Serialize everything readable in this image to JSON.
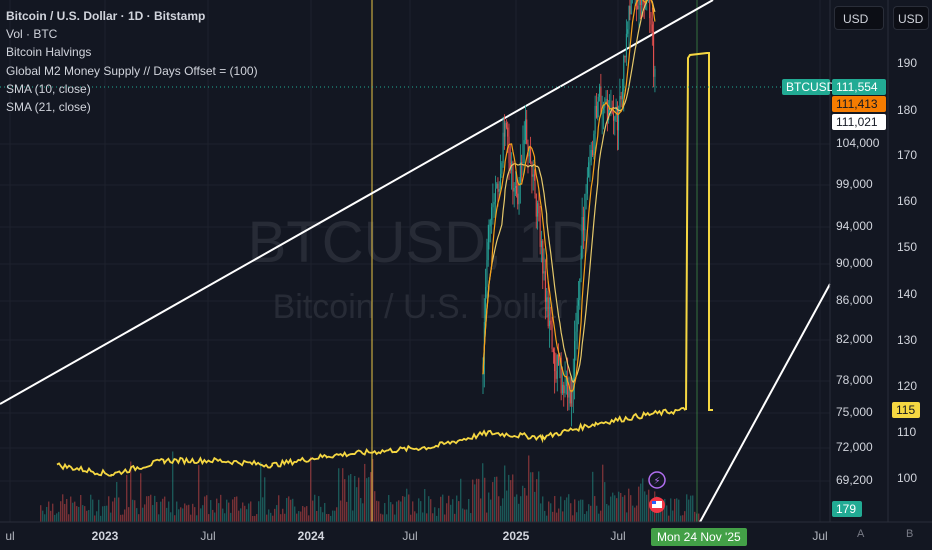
{
  "legend": {
    "title": "Bitcoin / U.S. Dollar · 1D · Bitstamp",
    "lines": [
      "Vol · BTC",
      "Bitcoin Halvings",
      "Global M2 Money Supply // Days Offset = (100)",
      "SMA (10, close)",
      "SMA (21, close)"
    ]
  },
  "watermark": {
    "ticker": "BTCUSD, 1D",
    "name": "Bitcoin / U.S. Dollar"
  },
  "currency_buttons": [
    "USD",
    "USD"
  ],
  "price_axis": {
    "labels": [
      "104,000",
      "99,000",
      "94,000",
      "90,000",
      "86,000",
      "82,000",
      "78,000",
      "75,000",
      "72,000",
      "69,200"
    ]
  },
  "m2_axis": {
    "labels": [
      "190",
      "180",
      "170",
      "160",
      "150",
      "140",
      "130",
      "120",
      "110",
      "100"
    ]
  },
  "badges": {
    "symbol": "BTCUSD",
    "last_price": "111,554",
    "sma10": "111,413",
    "sma21": "111,021",
    "m2_value": "115",
    "volume": "179",
    "crosshair_date": "Mon 24 Nov '25"
  },
  "time_axis": {
    "labels": [
      {
        "text": "ul",
        "x": 10,
        "bold": false
      },
      {
        "text": "2023",
        "x": 105,
        "bold": true
      },
      {
        "text": "Jul",
        "x": 208,
        "bold": false
      },
      {
        "text": "2024",
        "x": 311,
        "bold": true
      },
      {
        "text": "Jul",
        "x": 410,
        "bold": false
      },
      {
        "text": "2025",
        "x": 516,
        "bold": true
      },
      {
        "text": "Jul",
        "x": 618,
        "bold": false
      },
      {
        "text": "Jul",
        "x": 820,
        "bold": false
      }
    ]
  },
  "corner_labels": [
    "A",
    "B"
  ],
  "colors": {
    "background": "#131722",
    "candle_up": "#26a69a",
    "candle_down": "#ef5350",
    "sma10": "#f7a21b",
    "sma21": "#e6c96a",
    "m2": "#f5d742",
    "halving": "#e8c547",
    "trendline": "#ffffff",
    "badge_symbol": "#22ab94"
  },
  "chart_data": {
    "type": "candlestick",
    "symbol": "BTCUSD",
    "timeframe": "1D",
    "ylim_price": [
      69200,
      113000
    ],
    "ylim_m2": [
      100,
      195
    ],
    "halvings": [
      "2024-04-20"
    ],
    "price_series": [
      {
        "date": "2024-11-10",
        "close": 80000
      },
      {
        "date": "2024-11-20",
        "close": 94000
      },
      {
        "date": "2024-12-05",
        "close": 99000
      },
      {
        "date": "2024-12-17",
        "close": 106000
      },
      {
        "date": "2025-01-05",
        "close": 97000
      },
      {
        "date": "2025-01-20",
        "close": 106000
      },
      {
        "date": "2025-02-05",
        "close": 98000
      },
      {
        "date": "2025-02-25",
        "close": 86000
      },
      {
        "date": "2025-03-10",
        "close": 80000
      },
      {
        "date": "2025-04-08",
        "close": 76000
      },
      {
        "date": "2025-04-25",
        "close": 94000
      },
      {
        "date": "2025-05-22",
        "close": 110000
      },
      {
        "date": "2025-06-10",
        "close": 107000
      },
      {
        "date": "2025-06-25",
        "close": 107000
      },
      {
        "date": "2025-07-14",
        "close": 121000
      },
      {
        "date": "2025-08-14",
        "close": 123000
      },
      {
        "date": "2025-08-25",
        "close": 111554
      }
    ],
    "m2_series": [
      {
        "date": "2022-10",
        "value": 103
      },
      {
        "date": "2023-01",
        "value": 101
      },
      {
        "date": "2023-04",
        "value": 104
      },
      {
        "date": "2023-07",
        "value": 104
      },
      {
        "date": "2023-10",
        "value": 103
      },
      {
        "date": "2024-01",
        "value": 105
      },
      {
        "date": "2024-04",
        "value": 106
      },
      {
        "date": "2024-07",
        "value": 107
      },
      {
        "date": "2024-10",
        "value": 110
      },
      {
        "date": "2025-01",
        "value": 109
      },
      {
        "date": "2025-04",
        "value": 112
      },
      {
        "date": "2025-07",
        "value": 114
      },
      {
        "date": "2025-09",
        "value": 115
      }
    ],
    "current": {
      "price": 111554,
      "sma10": 111413,
      "sma21": 111021,
      "m2": 115,
      "volume": 179
    }
  }
}
